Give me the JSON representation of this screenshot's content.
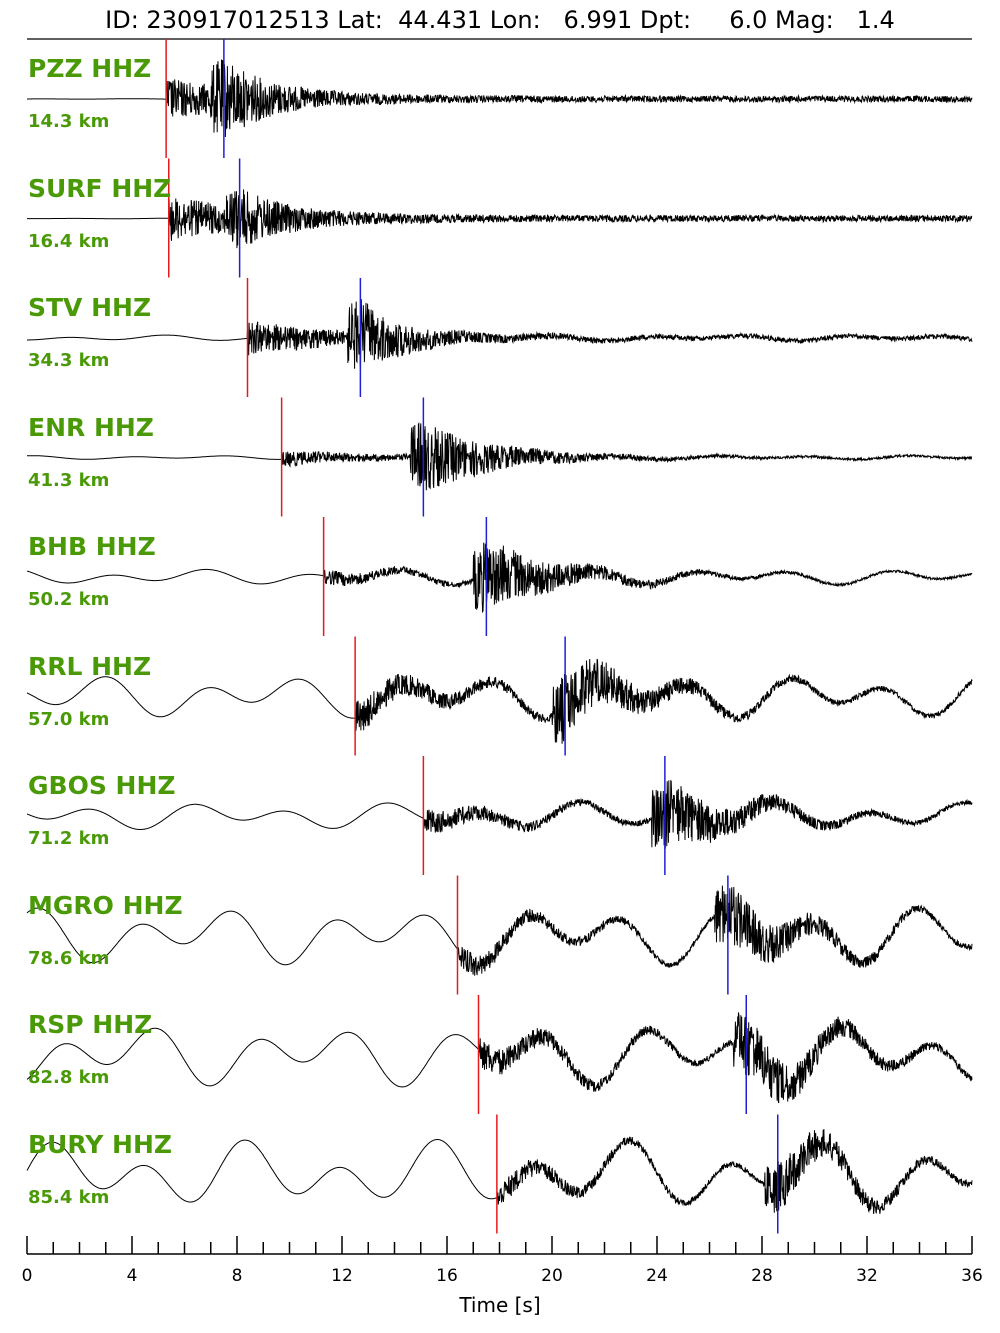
{
  "title": "ID: 230917012513 Lat:  44.431 Lon:   6.991 Dpt:     6.0 Mag:   1.4",
  "chart_data": {
    "type": "line",
    "title": "ID: 230917012513 Lat:  44.431 Lon:   6.991 Dpt:     6.0 Mag:   1.4",
    "xlabel": "Time [s]",
    "xlim": [
      0,
      36
    ],
    "x_ticks": [
      "0",
      "4",
      "8",
      "12",
      "16",
      "20",
      "24",
      "28",
      "32",
      "36"
    ],
    "pick_colors": {
      "p": "#e41a1c",
      "s": "#1f1fd6"
    },
    "trace_color": "#000000",
    "label_color": "#4a9a08",
    "series": [
      {
        "name": "PZZ HHZ",
        "distance": "14.3 km",
        "p_time": 5.3,
        "s_time": 7.5
      },
      {
        "name": "SURF HHZ",
        "distance": "16.4 km",
        "p_time": 5.4,
        "s_time": 8.1
      },
      {
        "name": "STV HHZ",
        "distance": "34.3 km",
        "p_time": 8.4,
        "s_time": 12.7
      },
      {
        "name": "ENR HHZ",
        "distance": "41.3 km",
        "p_time": 9.7,
        "s_time": 15.1
      },
      {
        "name": "BHB HHZ",
        "distance": "50.2 km",
        "p_time": 11.3,
        "s_time": 17.5
      },
      {
        "name": "RRL HHZ",
        "distance": "57.0 km",
        "p_time": 12.5,
        "s_time": 20.5
      },
      {
        "name": "GBOS HHZ",
        "distance": "71.2 km",
        "p_time": 15.1,
        "s_time": 24.3
      },
      {
        "name": "MGRO HHZ",
        "distance": "78.6 km",
        "p_time": 16.4,
        "s_time": 26.7
      },
      {
        "name": "RSP HHZ",
        "distance": "82.8 km",
        "p_time": 17.2,
        "s_time": 27.4
      },
      {
        "name": "BURY HHZ",
        "distance": "85.4 km",
        "p_time": 17.9,
        "s_time": 28.6
      }
    ]
  }
}
